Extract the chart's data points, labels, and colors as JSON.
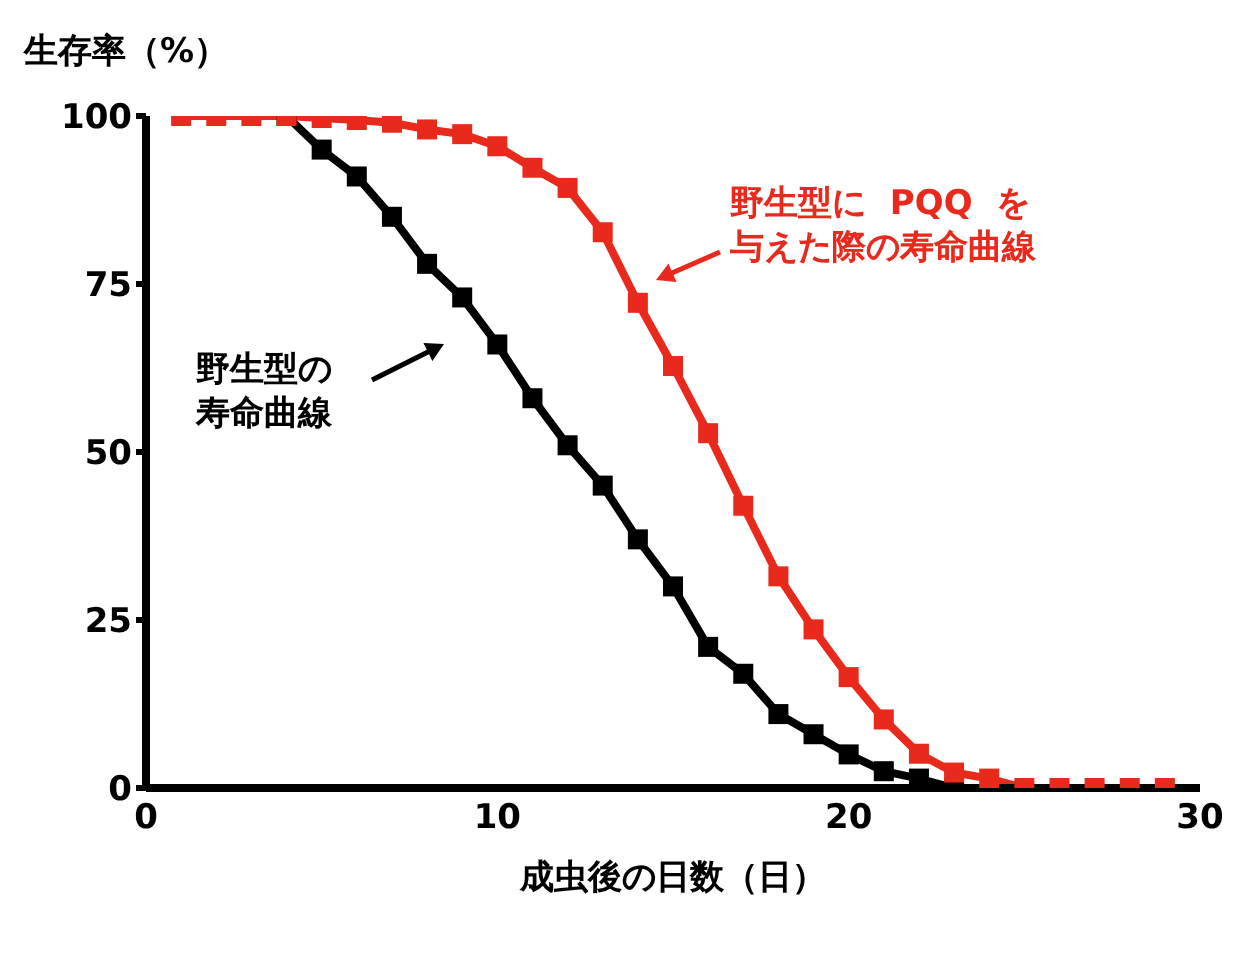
{
  "chart_data": {
    "type": "line",
    "xlabel": "成虫後の日数（日）",
    "ylabel": "生存率（%）",
    "xlim": [
      0,
      30
    ],
    "xticks": [
      0,
      10,
      20,
      30
    ],
    "ylim": [
      0,
      100
    ],
    "yticks": [
      0,
      25,
      50,
      75,
      100
    ],
    "marker": "square",
    "line_style": "solid",
    "series": [
      {
        "color": "#000000",
        "x": [
          4,
          5,
          6,
          7,
          8,
          9,
          10,
          11,
          12,
          13,
          14,
          15,
          16,
          17,
          18,
          19,
          20,
          21,
          22,
          23
        ],
        "values": [
          100,
          95,
          91,
          85,
          78,
          73,
          66,
          58,
          51,
          45,
          37,
          30,
          21,
          17,
          11,
          8,
          5,
          2.5,
          1.4,
          0
        ]
      },
      {
        "color": "#e8291c",
        "x": [
          1,
          2,
          3,
          4,
          5,
          6,
          7,
          8,
          9,
          10,
          11,
          12,
          13,
          14,
          15,
          16,
          17,
          18,
          19,
          20,
          21,
          22,
          23,
          24,
          25,
          26,
          27,
          28,
          29
        ],
        "values": [
          100,
          100,
          100,
          100,
          99.7,
          99.4,
          99,
          98,
          97.3,
          95.5,
          92.3,
          89.3,
          82.7,
          72.2,
          62.8,
          52.8,
          42,
          31.5,
          23.6,
          16.5,
          10.2,
          5.1,
          2.3,
          1.4,
          0,
          0,
          0,
          0,
          0
        ]
      }
    ],
    "annotations": [
      "野生型の寿命曲線",
      "野生型に PQQ を与えた際の寿命曲線"
    ]
  }
}
